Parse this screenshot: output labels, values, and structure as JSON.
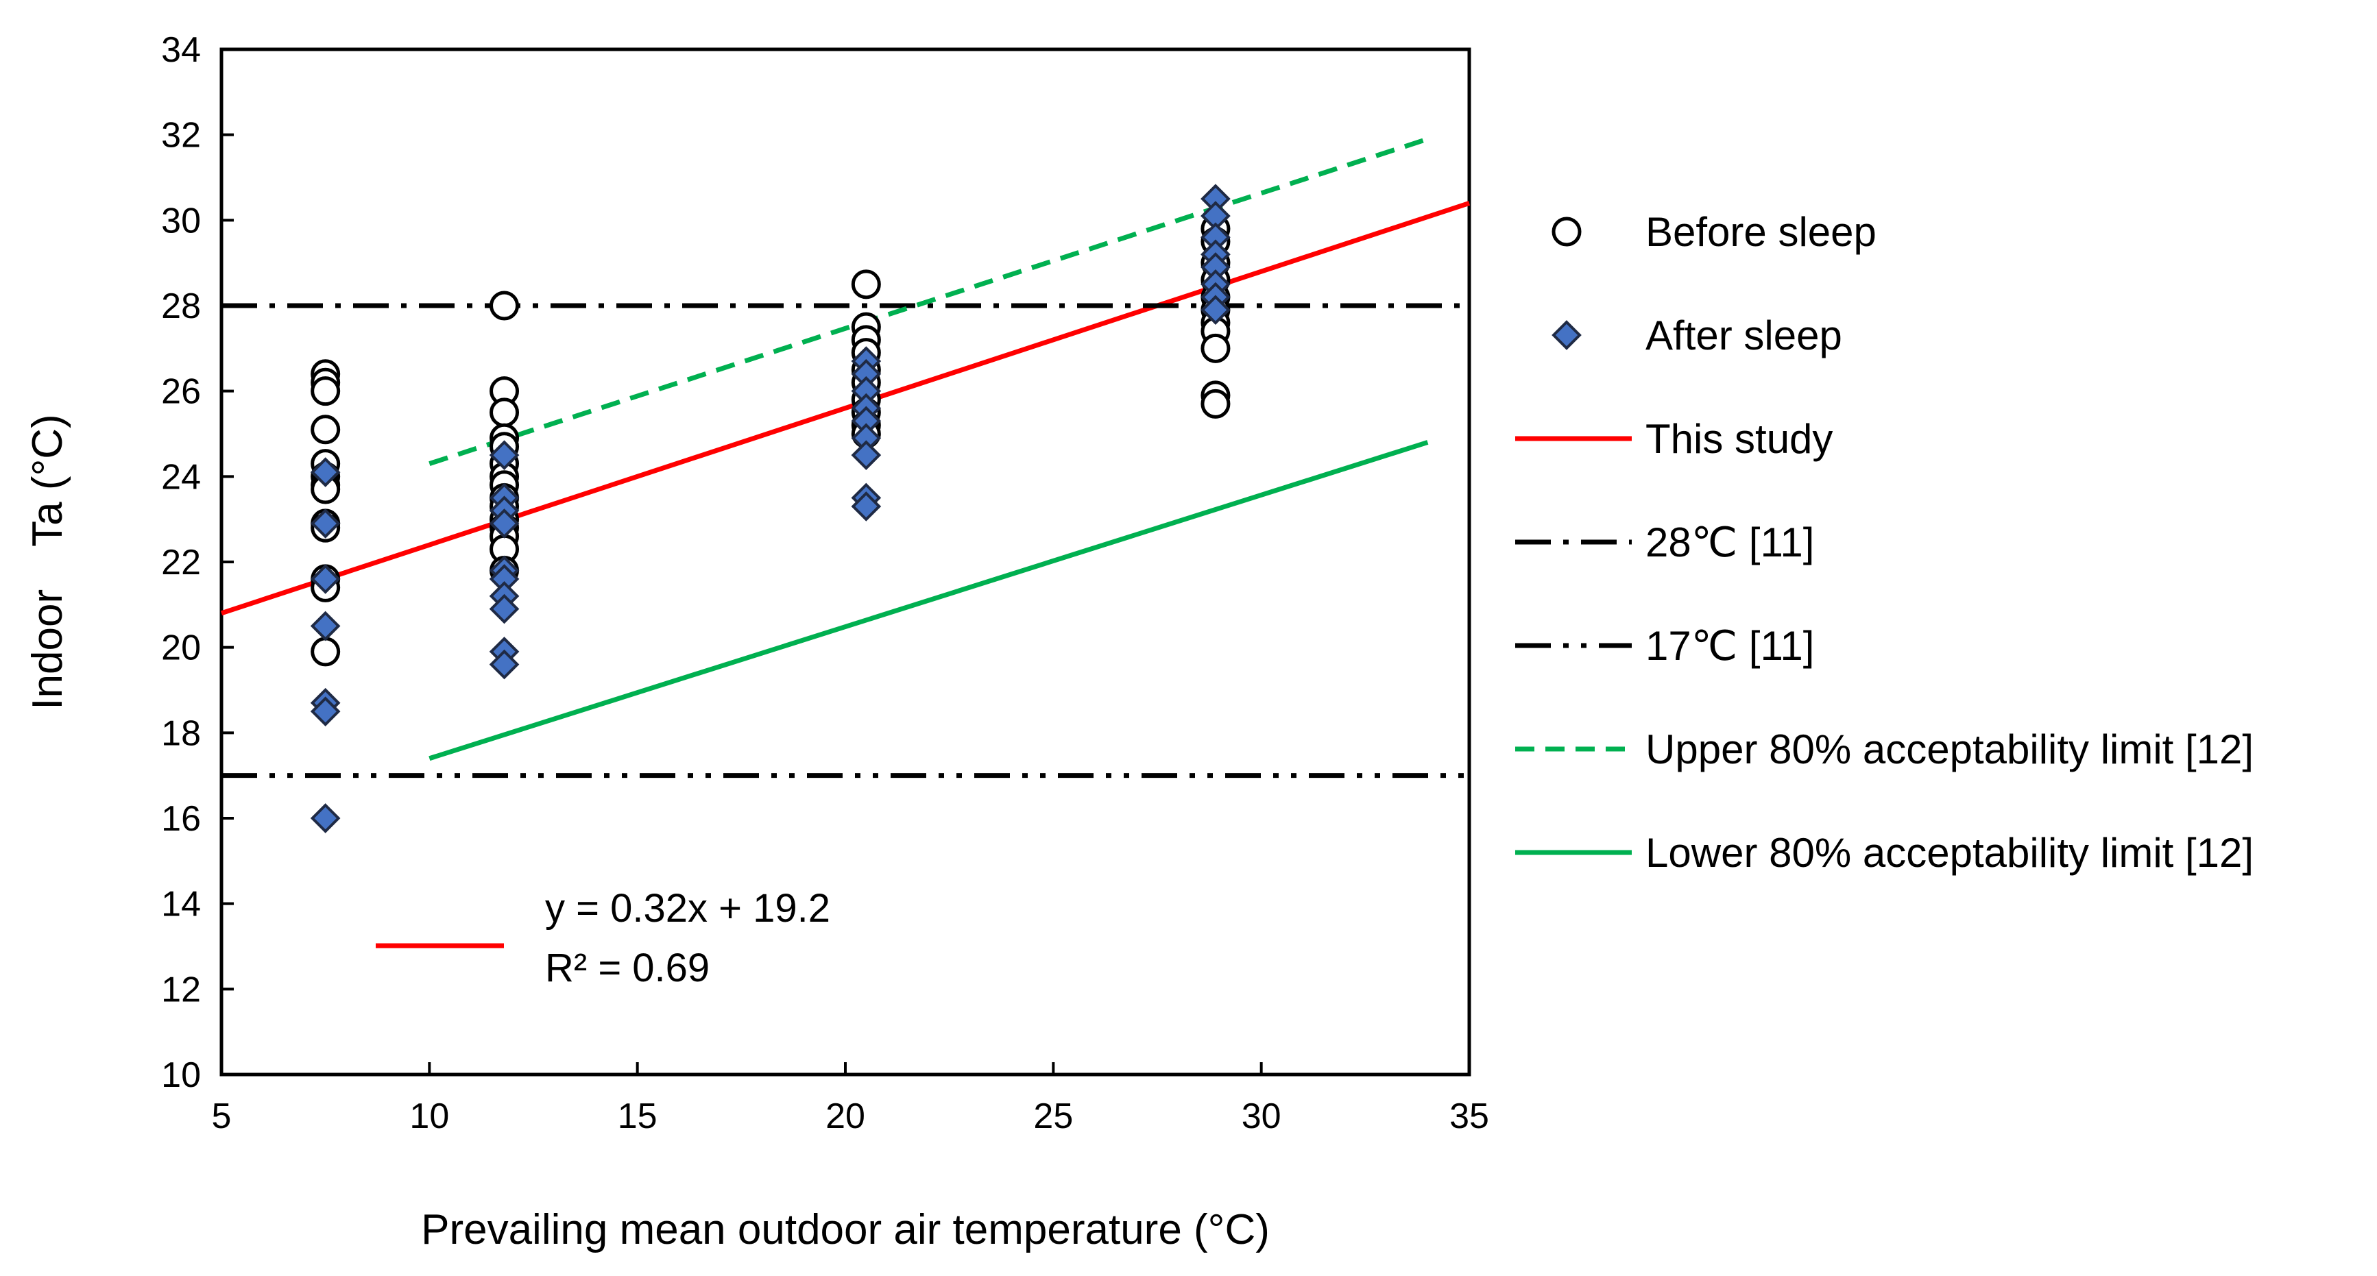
{
  "chart_data": {
    "type": "scatter",
    "xlabel": "Prevailing mean outdoor air temperature (°C)",
    "ylabel": "Indoor Ta (°C)",
    "xlim": [
      5,
      35
    ],
    "ylim": [
      10,
      34
    ],
    "x_ticks": [
      5,
      10,
      15,
      20,
      25,
      30,
      35
    ],
    "y_ticks": [
      10,
      12,
      14,
      16,
      18,
      20,
      22,
      24,
      26,
      28,
      30,
      32,
      34
    ],
    "grid": false,
    "legend_position": "right",
    "series": [
      {
        "name": "Before sleep",
        "marker": "open-circle",
        "color": "#000000",
        "points": [
          [
            7.5,
            26.4
          ],
          [
            7.5,
            26.2
          ],
          [
            7.5,
            26.0
          ],
          [
            7.5,
            25.1
          ],
          [
            7.5,
            24.3
          ],
          [
            7.5,
            24.0
          ],
          [
            7.5,
            23.8
          ],
          [
            7.5,
            23.7
          ],
          [
            7.5,
            22.9
          ],
          [
            7.5,
            22.8
          ],
          [
            7.5,
            21.6
          ],
          [
            7.5,
            21.4
          ],
          [
            7.5,
            19.9
          ],
          [
            11.8,
            28.0
          ],
          [
            11.8,
            26.0
          ],
          [
            11.8,
            25.5
          ],
          [
            11.8,
            24.9
          ],
          [
            11.8,
            24.7
          ],
          [
            11.8,
            24.3
          ],
          [
            11.8,
            24.0
          ],
          [
            11.8,
            23.8
          ],
          [
            11.8,
            23.5
          ],
          [
            11.8,
            23.3
          ],
          [
            11.8,
            23.0
          ],
          [
            11.8,
            22.8
          ],
          [
            11.8,
            22.6
          ],
          [
            11.8,
            22.3
          ],
          [
            11.8,
            21.8
          ],
          [
            20.5,
            28.5
          ],
          [
            20.5,
            27.5
          ],
          [
            20.5,
            27.2
          ],
          [
            20.5,
            26.9
          ],
          [
            20.5,
            26.5
          ],
          [
            20.5,
            26.2
          ],
          [
            20.5,
            25.8
          ],
          [
            20.5,
            25.5
          ],
          [
            20.5,
            25.2
          ],
          [
            20.5,
            25.0
          ],
          [
            28.9,
            29.8
          ],
          [
            28.9,
            29.5
          ],
          [
            28.9,
            29.0
          ],
          [
            28.9,
            28.6
          ],
          [
            28.9,
            28.2
          ],
          [
            28.9,
            27.9
          ],
          [
            28.9,
            27.6
          ],
          [
            28.9,
            27.4
          ],
          [
            28.9,
            27.0
          ],
          [
            28.9,
            25.9
          ],
          [
            28.9,
            25.7
          ]
        ]
      },
      {
        "name": "After sleep",
        "marker": "filled-diamond",
        "color": "#4472C4",
        "points": [
          [
            7.5,
            24.1
          ],
          [
            7.5,
            22.9
          ],
          [
            7.5,
            21.6
          ],
          [
            7.5,
            20.5
          ],
          [
            7.5,
            18.7
          ],
          [
            7.5,
            18.5
          ],
          [
            7.5,
            16.0
          ],
          [
            11.8,
            24.5
          ],
          [
            11.8,
            23.5
          ],
          [
            11.8,
            23.2
          ],
          [
            11.8,
            22.9
          ],
          [
            11.8,
            21.8
          ],
          [
            11.8,
            21.6
          ],
          [
            11.8,
            21.2
          ],
          [
            11.8,
            20.9
          ],
          [
            11.8,
            19.9
          ],
          [
            11.8,
            19.6
          ],
          [
            20.5,
            26.7
          ],
          [
            20.5,
            26.4
          ],
          [
            20.5,
            26.0
          ],
          [
            20.5,
            25.6
          ],
          [
            20.5,
            25.3
          ],
          [
            20.5,
            24.9
          ],
          [
            20.5,
            24.5
          ],
          [
            20.5,
            23.5
          ],
          [
            20.5,
            23.3
          ],
          [
            28.9,
            30.5
          ],
          [
            28.9,
            30.1
          ],
          [
            28.9,
            29.6
          ],
          [
            28.9,
            29.2
          ],
          [
            28.9,
            28.9
          ],
          [
            28.9,
            28.5
          ],
          [
            28.9,
            28.2
          ],
          [
            28.9,
            27.9
          ]
        ]
      }
    ],
    "lines": [
      {
        "name": "This study",
        "style": "solid",
        "color": "#FF0000",
        "x": [
          5,
          35
        ],
        "y": [
          20.8,
          30.4
        ]
      },
      {
        "name": "28℃ [11]",
        "style": "dash-dot",
        "color": "#000000",
        "x": [
          5,
          35
        ],
        "y": [
          28,
          28
        ]
      },
      {
        "name": "17℃ [11]",
        "style": "dash-dot-dot",
        "color": "#000000",
        "x": [
          5,
          35
        ],
        "y": [
          17,
          17
        ]
      },
      {
        "name": "Upper 80% acceptability limit [12]",
        "style": "dashed",
        "color": "#00B050",
        "x": [
          10,
          34
        ],
        "y": [
          24.3,
          31.9
        ]
      },
      {
        "name": "Lower 80% acceptability limit [12]",
        "style": "solid",
        "color": "#00B050",
        "x": [
          10,
          34
        ],
        "y": [
          17.4,
          24.8
        ]
      }
    ],
    "annotation": {
      "equation": "y = 0.32x + 19.2",
      "r_squared": "R² = 0.69"
    }
  }
}
